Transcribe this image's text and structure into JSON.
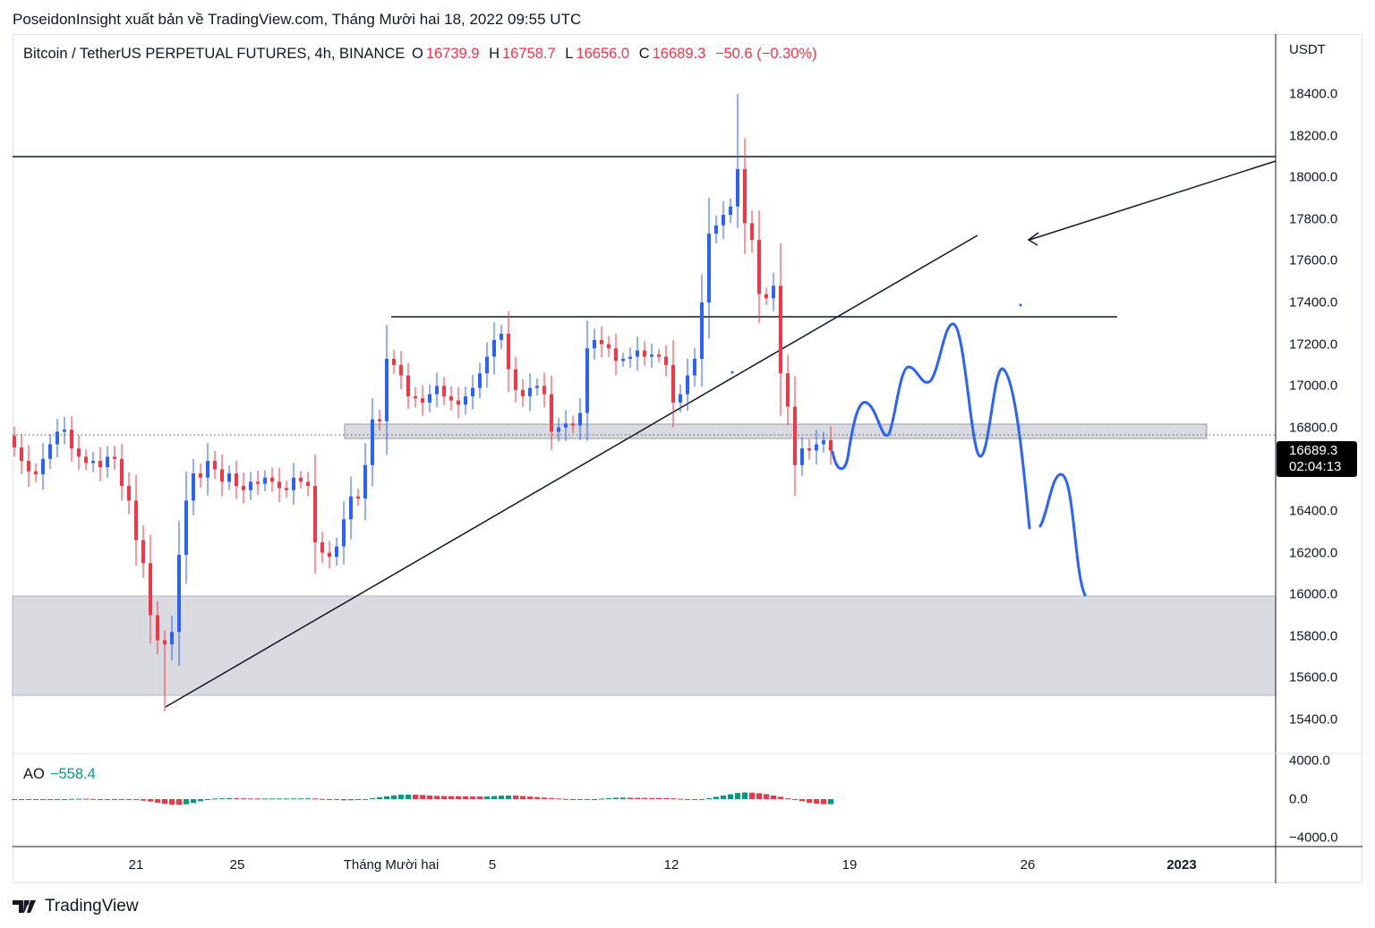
{
  "header": {
    "published": "PoseidonInsight xuất bản về TradingView.com, Tháng Mười hai 18, 2022 09:55 UTC"
  },
  "legend": {
    "symbol": "Bitcoin / TetherUS PERPETUAL FUTURES, 4h, BINANCE",
    "o_label": "O",
    "o": "16739.9",
    "h_label": "H",
    "h": "16758.7",
    "l_label": "L",
    "l": "16656.0",
    "c_label": "C",
    "c": "16689.3",
    "change": "−50.6 (−0.30%)"
  },
  "indicator": {
    "name": "AO",
    "value": "−558.4"
  },
  "price_axis": {
    "currency": "USDT",
    "labels": [
      "18400.0",
      "18200.0",
      "18000.0",
      "17800.0",
      "17600.0",
      "17400.0",
      "17200.0",
      "17000.0",
      "16800.0",
      "16400.0",
      "16200.0",
      "16000.0",
      "15800.0",
      "15600.0",
      "15400.0"
    ],
    "values": [
      18400,
      18200,
      18000,
      17800,
      17600,
      17400,
      17200,
      17000,
      16800,
      16400,
      16200,
      16000,
      15800,
      15600,
      15400
    ],
    "ao_labels": [
      "4000.0",
      "0.0",
      "−4000.0"
    ]
  },
  "current_tag": {
    "price": "16689.3",
    "countdown": "02:04:13"
  },
  "time_axis": {
    "labels": [
      {
        "text": "21",
        "bold": false
      },
      {
        "text": "25",
        "bold": false
      },
      {
        "text": "Tháng Mười hai",
        "bold": false
      },
      {
        "text": "5",
        "bold": false
      },
      {
        "text": "12",
        "bold": false
      },
      {
        "text": "19",
        "bold": false
      },
      {
        "text": "26",
        "bold": false
      },
      {
        "text": "2023",
        "bold": true
      }
    ]
  },
  "footer": {
    "brand": "TradingView"
  },
  "colors": {
    "up": "#2962ff",
    "down": "#f23645",
    "ao_up": "#089981",
    "ao_down": "#f23645",
    "drawing": "#2962ff"
  },
  "chart_data": {
    "type": "candlestick",
    "title": "Bitcoin / TetherUS PERPETUAL FUTURES, 4h, BINANCE",
    "ylim": [
      15200,
      18600
    ],
    "first_open": 16760,
    "closes": [
      16705,
      16640,
      16590,
      16576,
      16650,
      16720,
      16780,
      16790,
      16700,
      16660,
      16630,
      16640,
      16610,
      16660,
      16650,
      16520,
      16450,
      16260,
      16150,
      15900,
      15780,
      15760,
      15820,
      16190,
      16450,
      16580,
      16560,
      16640,
      16600,
      16540,
      16580,
      16520,
      16500,
      16540,
      16530,
      16560,
      16540,
      16510,
      16500,
      16560,
      16540,
      16520,
      16250,
      16200,
      16180,
      16230,
      16360,
      16470,
      16460,
      16620,
      16840,
      16830,
      17130,
      17100,
      17050,
      16950,
      16940,
      16920,
      16960,
      17000,
      16950,
      16930,
      16910,
      16950,
      16990,
      17060,
      17140,
      17220,
      17250,
      17080,
      16980,
      16950,
      16990,
      17000,
      16960,
      16780,
      16800,
      16820,
      16810,
      16870,
      17180,
      17220,
      17200,
      17180,
      17120,
      17130,
      17140,
      17170,
      17140,
      17150,
      17140,
      17100,
      16920,
      16960,
      17050,
      17130,
      17400,
      17730,
      17770,
      17820,
      17860,
      18040,
      17780,
      17700,
      17440,
      17420,
      17480,
      17060,
      16900,
      16620,
      16700,
      16690,
      16720,
      16740,
      16689.3
    ],
    "wick_extremes": {
      "max_high": 18400,
      "min_low": 15440
    },
    "levels": {
      "resistance": 18100,
      "range_top": 17330,
      "zone_small": [
        16740,
        16810
      ],
      "zone_demand": [
        15520,
        15990
      ]
    }
  }
}
